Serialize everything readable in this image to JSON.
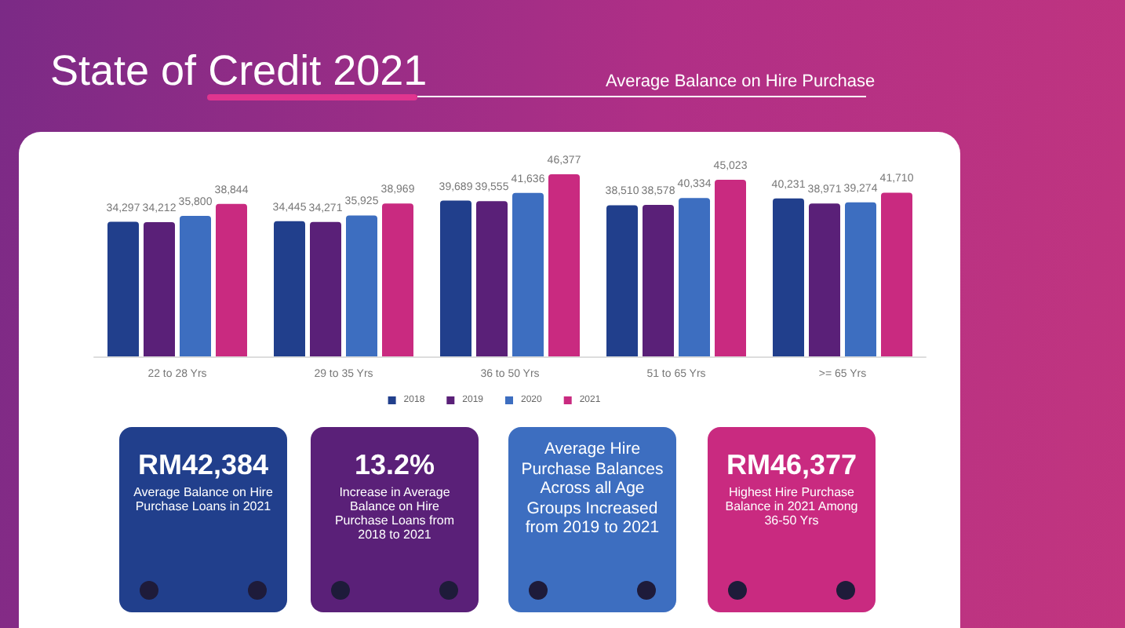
{
  "chart_data": {
    "type": "bar",
    "title": "State of Credit 2021",
    "subtitle": "Average Balance on Hire Purchase",
    "categories": [
      "22 to 28 Yrs",
      "29 to 35 Yrs",
      "36 to 50 Yrs",
      "51 to 65 Yrs",
      ">= 65 Yrs"
    ],
    "series": [
      {
        "name": "2018",
        "color": "#213f8c",
        "values": [
          34297,
          34445,
          39689,
          38510,
          40231
        ],
        "value_labels": [
          "34,297",
          "34,445",
          "39,689",
          "38,510",
          "40,231"
        ]
      },
      {
        "name": "2019",
        "color": "#5a2078",
        "values": [
          34212,
          34271,
          39555,
          38578,
          38971
        ],
        "value_labels": [
          "34,212",
          "34,271",
          "39,555",
          "38,578",
          "38,971"
        ]
      },
      {
        "name": "2020",
        "color": "#3d6ec0",
        "values": [
          35800,
          35925,
          41636,
          40334,
          39274
        ],
        "value_labels": [
          "35,800",
          "35,925",
          "41,636",
          "40,334",
          "39,274"
        ]
      },
      {
        "name": "2021",
        "color": "#c92a80",
        "values": [
          38844,
          38969,
          46377,
          45023,
          41710
        ],
        "value_labels": [
          "38,844",
          "38,969",
          "46,377",
          "45,023",
          "41,710"
        ]
      }
    ],
    "tick_labels": "x",
    "legend": "bottom",
    "annotations": [
      "RM42,384\nAverage Balance on Hire Purchase Loans in 2021",
      "13.2%\nIncrease in Average Balance on Hire Purchase Loans from 2018 to 2021",
      "Average Hire Purchase Balances Across all Age Groups Increased from 2019 to 2021",
      "RM46,377\nHighest Hire Purchase Balance in 2021 Among 36-50 Yrs"
    ]
  }
}
